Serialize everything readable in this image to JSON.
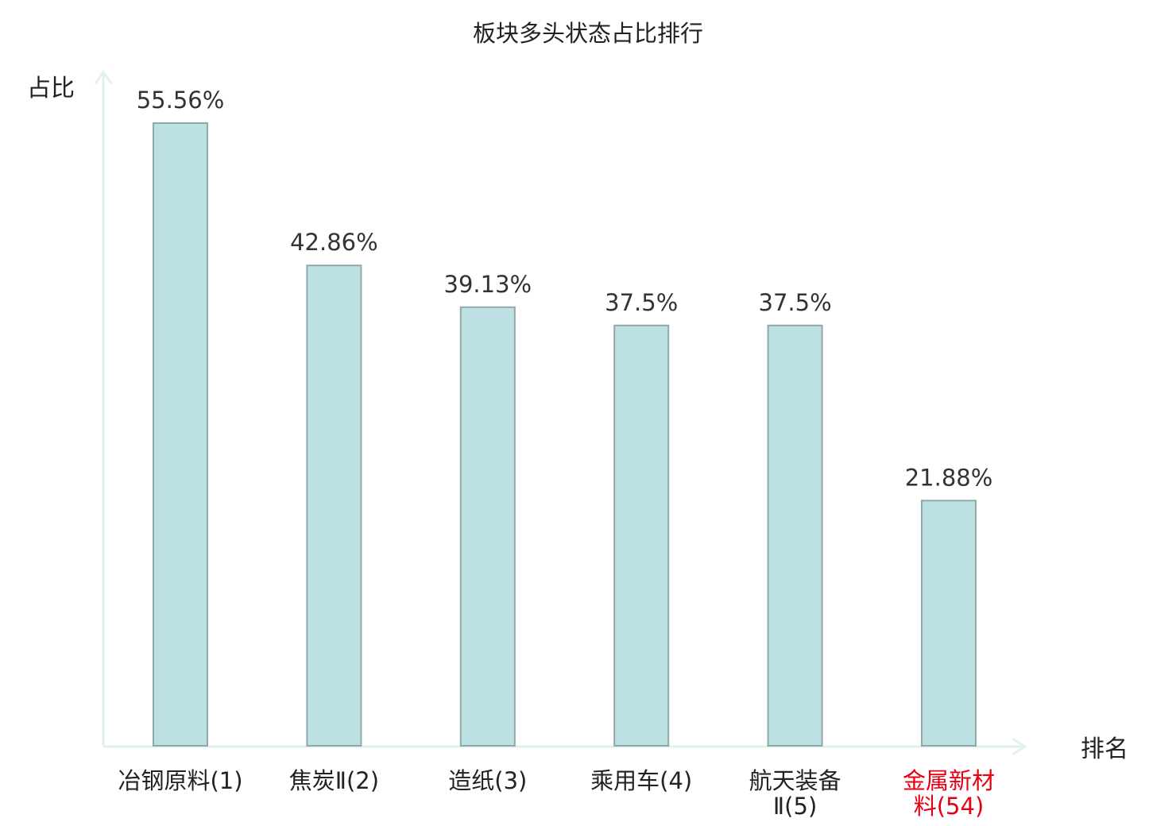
{
  "chart_data": {
    "type": "bar",
    "title": "板块多头状态占比排行",
    "ylabel": "占比",
    "xlabel": "排名",
    "categories": [
      [
        "冶钢原料(1)"
      ],
      [
        "焦炭Ⅱ(2)"
      ],
      [
        "造纸(3)"
      ],
      [
        "乘用车(4)"
      ],
      [
        "航天装备",
        "Ⅱ(5)"
      ],
      [
        "金属新材",
        "料(54)"
      ]
    ],
    "values": [
      55.56,
      42.86,
      39.13,
      37.5,
      37.5,
      21.88
    ],
    "value_labels": [
      "55.56%",
      "42.86%",
      "39.13%",
      "37.5%",
      "37.5%",
      "21.88%"
    ],
    "highlight_index": 5,
    "ylim": [
      0,
      55.56
    ],
    "grid": false,
    "colors": {
      "bar_fill": "#bde0e3",
      "bar_stroke": "#8fa9ab",
      "axis": "#dff2ef",
      "text": "#333333",
      "label": "#222222",
      "highlight": "#e60012"
    }
  }
}
